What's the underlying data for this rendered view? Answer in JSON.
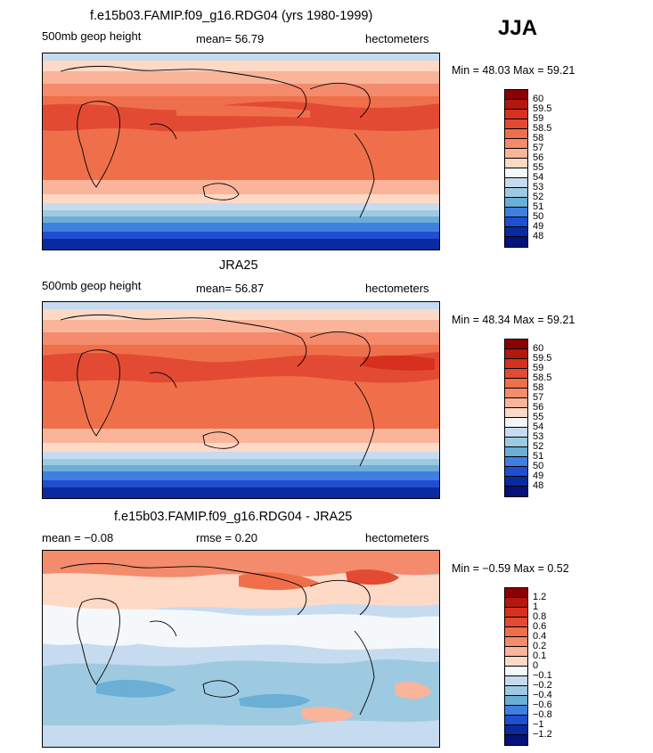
{
  "season": "JJA",
  "panels": [
    {
      "title": "f.e15b03.FAMIP.f09_g16.RDG04 (yrs 1980-1999)",
      "left_label": "500mb geop height",
      "center_label": "mean=   56.79",
      "right_label": "hectometers",
      "minmax": "Min =   48.03  Max =   59.21",
      "colorbar_labels": [
        "60",
        "59.5",
        "59",
        "58.5",
        "58",
        "57",
        "56",
        "55",
        "54",
        "53",
        "52",
        "51",
        "50",
        "49",
        "48"
      ]
    },
    {
      "title": "JRA25",
      "left_label": "500mb geop height",
      "center_label": "mean=   56.87",
      "right_label": "hectometers",
      "minmax": "Min =   48.34  Max =   59.21",
      "colorbar_labels": [
        "60",
        "59.5",
        "59",
        "58.5",
        "58",
        "57",
        "56",
        "55",
        "54",
        "53",
        "52",
        "51",
        "50",
        "49",
        "48"
      ]
    },
    {
      "title": "f.e15b03.FAMIP.f09_g16.RDG04 - JRA25",
      "left_label": "mean =   −0.08",
      "center_label": "rmse =     0.20",
      "right_label": "hectometers",
      "minmax": "Min =   −0.59  Max =     0.52",
      "colorbar_labels": [
        "1.2",
        "1",
        "0.8",
        "0.6",
        "0.4",
        "0.2",
        "0.1",
        "0",
        "−0.1",
        "−0.2",
        "−0.4",
        "−0.6",
        "−0.8",
        "−1",
        "−1.2"
      ]
    }
  ],
  "colors": {
    "abs_scale": [
      "#8b0000",
      "#b2180d",
      "#d7301f",
      "#e34a33",
      "#ef6f4a",
      "#f48b6c",
      "#f9b49a",
      "#fdd9c6",
      "#f4f8fb",
      "#c6dbef",
      "#9ecae1",
      "#6baed6",
      "#3f7fe0",
      "#1f4fd0",
      "#0a2aa0",
      "#05127a"
    ],
    "diff_scale": [
      "#8b0000",
      "#b2180d",
      "#d7301f",
      "#e34a33",
      "#ef6f4a",
      "#f48b6c",
      "#f9b49a",
      "#fdd9c6",
      "#f4f8fb",
      "#c6dbef",
      "#9ecae1",
      "#6baed6",
      "#3f7fe0",
      "#1f4fd0",
      "#0a2aa0",
      "#05127a"
    ]
  }
}
